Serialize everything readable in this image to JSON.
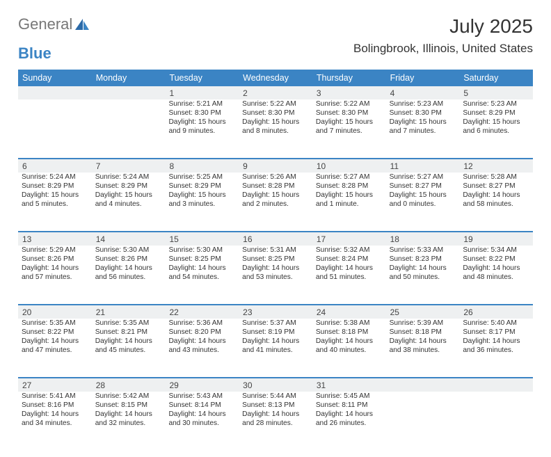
{
  "brand": {
    "part1": "General",
    "part2": "Blue"
  },
  "title": "July 2025",
  "location": "Bolingbrook, Illinois, United States",
  "colors": {
    "header_bg": "#3b84c4",
    "header_text": "#ffffff",
    "daynum_bg": "#eef0f1",
    "divider": "#3b84c4",
    "body_text": "#333333",
    "background": "#ffffff"
  },
  "weekdays": [
    "Sunday",
    "Monday",
    "Tuesday",
    "Wednesday",
    "Thursday",
    "Friday",
    "Saturday"
  ],
  "weeks": [
    [
      {
        "num": "",
        "sunrise": "",
        "sunset": "",
        "daylight1": "",
        "daylight2": ""
      },
      {
        "num": "",
        "sunrise": "",
        "sunset": "",
        "daylight1": "",
        "daylight2": ""
      },
      {
        "num": "1",
        "sunrise": "Sunrise: 5:21 AM",
        "sunset": "Sunset: 8:30 PM",
        "daylight1": "Daylight: 15 hours",
        "daylight2": "and 9 minutes."
      },
      {
        "num": "2",
        "sunrise": "Sunrise: 5:22 AM",
        "sunset": "Sunset: 8:30 PM",
        "daylight1": "Daylight: 15 hours",
        "daylight2": "and 8 minutes."
      },
      {
        "num": "3",
        "sunrise": "Sunrise: 5:22 AM",
        "sunset": "Sunset: 8:30 PM",
        "daylight1": "Daylight: 15 hours",
        "daylight2": "and 7 minutes."
      },
      {
        "num": "4",
        "sunrise": "Sunrise: 5:23 AM",
        "sunset": "Sunset: 8:30 PM",
        "daylight1": "Daylight: 15 hours",
        "daylight2": "and 7 minutes."
      },
      {
        "num": "5",
        "sunrise": "Sunrise: 5:23 AM",
        "sunset": "Sunset: 8:29 PM",
        "daylight1": "Daylight: 15 hours",
        "daylight2": "and 6 minutes."
      }
    ],
    [
      {
        "num": "6",
        "sunrise": "Sunrise: 5:24 AM",
        "sunset": "Sunset: 8:29 PM",
        "daylight1": "Daylight: 15 hours",
        "daylight2": "and 5 minutes."
      },
      {
        "num": "7",
        "sunrise": "Sunrise: 5:24 AM",
        "sunset": "Sunset: 8:29 PM",
        "daylight1": "Daylight: 15 hours",
        "daylight2": "and 4 minutes."
      },
      {
        "num": "8",
        "sunrise": "Sunrise: 5:25 AM",
        "sunset": "Sunset: 8:29 PM",
        "daylight1": "Daylight: 15 hours",
        "daylight2": "and 3 minutes."
      },
      {
        "num": "9",
        "sunrise": "Sunrise: 5:26 AM",
        "sunset": "Sunset: 8:28 PM",
        "daylight1": "Daylight: 15 hours",
        "daylight2": "and 2 minutes."
      },
      {
        "num": "10",
        "sunrise": "Sunrise: 5:27 AM",
        "sunset": "Sunset: 8:28 PM",
        "daylight1": "Daylight: 15 hours",
        "daylight2": "and 1 minute."
      },
      {
        "num": "11",
        "sunrise": "Sunrise: 5:27 AM",
        "sunset": "Sunset: 8:27 PM",
        "daylight1": "Daylight: 15 hours",
        "daylight2": "and 0 minutes."
      },
      {
        "num": "12",
        "sunrise": "Sunrise: 5:28 AM",
        "sunset": "Sunset: 8:27 PM",
        "daylight1": "Daylight: 14 hours",
        "daylight2": "and 58 minutes."
      }
    ],
    [
      {
        "num": "13",
        "sunrise": "Sunrise: 5:29 AM",
        "sunset": "Sunset: 8:26 PM",
        "daylight1": "Daylight: 14 hours",
        "daylight2": "and 57 minutes."
      },
      {
        "num": "14",
        "sunrise": "Sunrise: 5:30 AM",
        "sunset": "Sunset: 8:26 PM",
        "daylight1": "Daylight: 14 hours",
        "daylight2": "and 56 minutes."
      },
      {
        "num": "15",
        "sunrise": "Sunrise: 5:30 AM",
        "sunset": "Sunset: 8:25 PM",
        "daylight1": "Daylight: 14 hours",
        "daylight2": "and 54 minutes."
      },
      {
        "num": "16",
        "sunrise": "Sunrise: 5:31 AM",
        "sunset": "Sunset: 8:25 PM",
        "daylight1": "Daylight: 14 hours",
        "daylight2": "and 53 minutes."
      },
      {
        "num": "17",
        "sunrise": "Sunrise: 5:32 AM",
        "sunset": "Sunset: 8:24 PM",
        "daylight1": "Daylight: 14 hours",
        "daylight2": "and 51 minutes."
      },
      {
        "num": "18",
        "sunrise": "Sunrise: 5:33 AM",
        "sunset": "Sunset: 8:23 PM",
        "daylight1": "Daylight: 14 hours",
        "daylight2": "and 50 minutes."
      },
      {
        "num": "19",
        "sunrise": "Sunrise: 5:34 AM",
        "sunset": "Sunset: 8:22 PM",
        "daylight1": "Daylight: 14 hours",
        "daylight2": "and 48 minutes."
      }
    ],
    [
      {
        "num": "20",
        "sunrise": "Sunrise: 5:35 AM",
        "sunset": "Sunset: 8:22 PM",
        "daylight1": "Daylight: 14 hours",
        "daylight2": "and 47 minutes."
      },
      {
        "num": "21",
        "sunrise": "Sunrise: 5:35 AM",
        "sunset": "Sunset: 8:21 PM",
        "daylight1": "Daylight: 14 hours",
        "daylight2": "and 45 minutes."
      },
      {
        "num": "22",
        "sunrise": "Sunrise: 5:36 AM",
        "sunset": "Sunset: 8:20 PM",
        "daylight1": "Daylight: 14 hours",
        "daylight2": "and 43 minutes."
      },
      {
        "num": "23",
        "sunrise": "Sunrise: 5:37 AM",
        "sunset": "Sunset: 8:19 PM",
        "daylight1": "Daylight: 14 hours",
        "daylight2": "and 41 minutes."
      },
      {
        "num": "24",
        "sunrise": "Sunrise: 5:38 AM",
        "sunset": "Sunset: 8:18 PM",
        "daylight1": "Daylight: 14 hours",
        "daylight2": "and 40 minutes."
      },
      {
        "num": "25",
        "sunrise": "Sunrise: 5:39 AM",
        "sunset": "Sunset: 8:18 PM",
        "daylight1": "Daylight: 14 hours",
        "daylight2": "and 38 minutes."
      },
      {
        "num": "26",
        "sunrise": "Sunrise: 5:40 AM",
        "sunset": "Sunset: 8:17 PM",
        "daylight1": "Daylight: 14 hours",
        "daylight2": "and 36 minutes."
      }
    ],
    [
      {
        "num": "27",
        "sunrise": "Sunrise: 5:41 AM",
        "sunset": "Sunset: 8:16 PM",
        "daylight1": "Daylight: 14 hours",
        "daylight2": "and 34 minutes."
      },
      {
        "num": "28",
        "sunrise": "Sunrise: 5:42 AM",
        "sunset": "Sunset: 8:15 PM",
        "daylight1": "Daylight: 14 hours",
        "daylight2": "and 32 minutes."
      },
      {
        "num": "29",
        "sunrise": "Sunrise: 5:43 AM",
        "sunset": "Sunset: 8:14 PM",
        "daylight1": "Daylight: 14 hours",
        "daylight2": "and 30 minutes."
      },
      {
        "num": "30",
        "sunrise": "Sunrise: 5:44 AM",
        "sunset": "Sunset: 8:13 PM",
        "daylight1": "Daylight: 14 hours",
        "daylight2": "and 28 minutes."
      },
      {
        "num": "31",
        "sunrise": "Sunrise: 5:45 AM",
        "sunset": "Sunset: 8:11 PM",
        "daylight1": "Daylight: 14 hours",
        "daylight2": "and 26 minutes."
      },
      {
        "num": "",
        "sunrise": "",
        "sunset": "",
        "daylight1": "",
        "daylight2": ""
      },
      {
        "num": "",
        "sunrise": "",
        "sunset": "",
        "daylight1": "",
        "daylight2": ""
      }
    ]
  ]
}
